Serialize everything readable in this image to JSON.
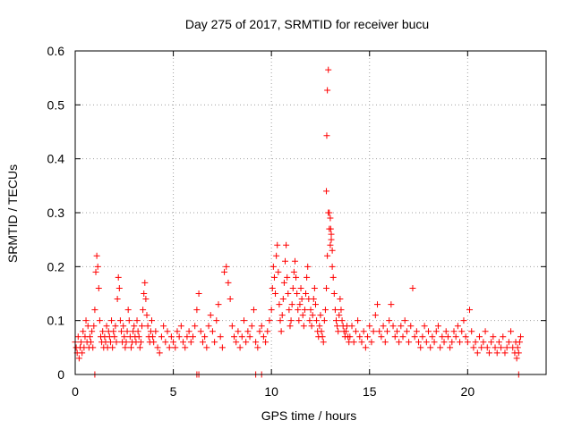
{
  "chart_data": {
    "type": "scatter",
    "title": "Day 275 of 2017, SRMTID for receiver bucu",
    "xlabel": "GPS time / hours",
    "ylabel": "SRMTID / TECUs",
    "xlim": [
      0,
      24
    ],
    "ylim": [
      0,
      0.6
    ],
    "xticks": [
      0,
      5,
      10,
      15,
      20
    ],
    "yticks": [
      0,
      0.1,
      0.2,
      0.3,
      0.4,
      0.5,
      0.6
    ],
    "xtick_labels": [
      "0",
      "5",
      "10",
      "15",
      "20"
    ],
    "ytick_labels": [
      "0",
      "0.1",
      "0.2",
      "0.3",
      "0.4",
      "0.5",
      "0.6"
    ],
    "grid": true,
    "marker": "+",
    "series_color": "#ff0000",
    "series": [
      {
        "name": "SRMTID",
        "x": [
          0.0,
          0.05,
          0.1,
          0.15,
          0.2,
          0.25,
          0.3,
          0.35,
          0.4,
          0.45,
          0.5,
          0.55,
          0.6,
          0.65,
          0.7,
          0.75,
          0.8,
          0.85,
          0.9,
          0.95,
          1.0,
          1.05,
          1.1,
          1.15,
          1.2,
          1.25,
          1.3,
          1.35,
          1.4,
          1.45,
          1.5,
          1.55,
          1.6,
          1.65,
          1.7,
          1.75,
          1.8,
          1.85,
          1.9,
          1.95,
          2.0,
          2.05,
          2.1,
          2.15,
          2.2,
          2.25,
          2.3,
          2.35,
          2.4,
          2.45,
          2.5,
          2.55,
          2.6,
          2.65,
          2.7,
          2.75,
          2.8,
          2.85,
          2.9,
          2.95,
          3.0,
          3.05,
          3.1,
          3.15,
          3.2,
          3.25,
          3.3,
          3.35,
          3.4,
          3.45,
          3.5,
          3.55,
          3.6,
          3.65,
          3.7,
          3.75,
          3.8,
          3.85,
          3.9,
          3.95,
          4.0,
          4.1,
          4.2,
          4.3,
          4.4,
          4.5,
          4.6,
          4.7,
          4.8,
          4.9,
          5.0,
          5.1,
          5.2,
          5.3,
          5.4,
          5.5,
          5.6,
          5.7,
          5.8,
          5.9,
          6.0,
          6.1,
          6.2,
          6.3,
          6.4,
          6.5,
          6.6,
          6.7,
          6.8,
          6.9,
          7.0,
          7.1,
          7.2,
          7.3,
          7.4,
          7.5,
          7.6,
          7.7,
          7.8,
          7.9,
          8.0,
          8.1,
          8.2,
          8.3,
          8.4,
          8.5,
          8.6,
          8.7,
          8.8,
          8.9,
          9.0,
          9.1,
          9.2,
          9.3,
          9.4,
          9.5,
          9.6,
          9.7,
          9.8,
          9.9,
          10.0,
          10.05,
          10.1,
          10.15,
          10.2,
          10.25,
          10.3,
          10.35,
          10.4,
          10.45,
          10.5,
          10.55,
          10.6,
          10.65,
          10.7,
          10.75,
          10.8,
          10.85,
          10.9,
          10.95,
          11.0,
          11.05,
          11.1,
          11.15,
          11.2,
          11.25,
          11.3,
          11.35,
          11.4,
          11.45,
          11.5,
          11.55,
          11.6,
          11.65,
          11.7,
          11.75,
          11.8,
          11.85,
          11.9,
          11.95,
          12.0,
          12.05,
          12.1,
          12.15,
          12.2,
          12.25,
          12.3,
          12.35,
          12.4,
          12.45,
          12.5,
          12.55,
          12.6,
          12.65,
          12.7,
          12.75,
          12.8,
          12.85,
          12.9,
          12.95,
          13.0,
          13.05,
          13.1,
          13.15,
          13.2,
          13.25,
          13.3,
          13.35,
          13.4,
          13.45,
          13.5,
          13.55,
          13.6,
          13.65,
          13.7,
          13.75,
          13.8,
          13.85,
          13.9,
          13.95,
          14.0,
          14.1,
          14.2,
          14.3,
          14.4,
          14.5,
          14.6,
          14.7,
          14.8,
          14.9,
          15.0,
          15.1,
          15.2,
          15.3,
          15.4,
          15.5,
          15.6,
          15.7,
          15.8,
          15.9,
          16.0,
          16.1,
          16.2,
          16.3,
          16.4,
          16.5,
          16.6,
          16.7,
          16.8,
          16.9,
          17.0,
          17.1,
          17.2,
          17.3,
          17.4,
          17.5,
          17.6,
          17.7,
          17.8,
          17.9,
          18.0,
          18.1,
          18.2,
          18.3,
          18.4,
          18.5,
          18.6,
          18.7,
          18.8,
          18.9,
          19.0,
          19.1,
          19.2,
          19.3,
          19.4,
          19.5,
          19.6,
          19.7,
          19.8,
          19.9,
          20.0,
          20.1,
          20.2,
          20.3,
          20.4,
          20.5,
          20.6,
          20.7,
          20.8,
          20.9,
          21.0,
          21.1,
          21.2,
          21.3,
          21.4,
          21.5,
          21.6,
          21.7,
          21.8,
          21.9,
          22.0,
          22.1,
          22.2,
          22.3,
          22.4,
          22.45,
          22.5,
          22.55,
          22.6,
          22.65,
          22.7,
          12.8,
          12.82,
          12.85,
          12.9,
          12.95,
          13.0,
          13.02,
          13.05,
          13.1,
          1.0,
          6.2,
          6.3,
          9.2,
          9.5,
          22.6
        ],
        "y": [
          0.06,
          0.05,
          0.04,
          0.07,
          0.03,
          0.05,
          0.06,
          0.04,
          0.08,
          0.05,
          0.07,
          0.1,
          0.06,
          0.09,
          0.05,
          0.07,
          0.06,
          0.08,
          0.05,
          0.09,
          0.12,
          0.19,
          0.22,
          0.2,
          0.16,
          0.1,
          0.07,
          0.06,
          0.08,
          0.05,
          0.07,
          0.06,
          0.09,
          0.05,
          0.08,
          0.07,
          0.06,
          0.1,
          0.05,
          0.08,
          0.07,
          0.09,
          0.06,
          0.14,
          0.18,
          0.16,
          0.1,
          0.08,
          0.06,
          0.09,
          0.07,
          0.05,
          0.06,
          0.08,
          0.12,
          0.1,
          0.07,
          0.05,
          0.06,
          0.08,
          0.09,
          0.07,
          0.06,
          0.1,
          0.08,
          0.07,
          0.05,
          0.06,
          0.09,
          0.12,
          0.15,
          0.17,
          0.14,
          0.11,
          0.09,
          0.07,
          0.06,
          0.08,
          0.1,
          0.07,
          0.06,
          0.08,
          0.05,
          0.04,
          0.07,
          0.09,
          0.06,
          0.08,
          0.05,
          0.07,
          0.06,
          0.05,
          0.08,
          0.07,
          0.09,
          0.06,
          0.05,
          0.07,
          0.08,
          0.06,
          0.07,
          0.09,
          0.12,
          0.15,
          0.08,
          0.06,
          0.07,
          0.05,
          0.09,
          0.11,
          0.08,
          0.06,
          0.1,
          0.13,
          0.07,
          0.05,
          0.19,
          0.2,
          0.17,
          0.14,
          0.09,
          0.07,
          0.06,
          0.08,
          0.05,
          0.07,
          0.1,
          0.06,
          0.08,
          0.07,
          0.09,
          0.12,
          0.06,
          0.05,
          0.08,
          0.09,
          0.07,
          0.06,
          0.08,
          0.1,
          0.12,
          0.16,
          0.2,
          0.18,
          0.15,
          0.22,
          0.24,
          0.19,
          0.13,
          0.1,
          0.08,
          0.11,
          0.14,
          0.17,
          0.21,
          0.24,
          0.18,
          0.15,
          0.12,
          0.09,
          0.1,
          0.13,
          0.16,
          0.19,
          0.21,
          0.18,
          0.15,
          0.12,
          0.1,
          0.13,
          0.16,
          0.14,
          0.11,
          0.09,
          0.12,
          0.15,
          0.18,
          0.2,
          0.14,
          0.1,
          0.12,
          0.09,
          0.11,
          0.14,
          0.16,
          0.13,
          0.1,
          0.08,
          0.07,
          0.09,
          0.11,
          0.08,
          0.07,
          0.06,
          0.1,
          0.12,
          0.16,
          0.22,
          0.3,
          0.27,
          0.24,
          0.26,
          0.2,
          0.18,
          0.15,
          0.12,
          0.1,
          0.09,
          0.08,
          0.11,
          0.14,
          0.12,
          0.1,
          0.09,
          0.08,
          0.07,
          0.08,
          0.09,
          0.07,
          0.06,
          0.07,
          0.09,
          0.06,
          0.08,
          0.1,
          0.07,
          0.06,
          0.08,
          0.05,
          0.07,
          0.09,
          0.06,
          0.08,
          0.11,
          0.13,
          0.08,
          0.07,
          0.09,
          0.06,
          0.08,
          0.1,
          0.13,
          0.09,
          0.07,
          0.08,
          0.06,
          0.09,
          0.07,
          0.1,
          0.08,
          0.06,
          0.09,
          0.16,
          0.07,
          0.08,
          0.06,
          0.05,
          0.07,
          0.09,
          0.06,
          0.08,
          0.05,
          0.07,
          0.06,
          0.08,
          0.09,
          0.05,
          0.07,
          0.06,
          0.08,
          0.07,
          0.05,
          0.06,
          0.08,
          0.07,
          0.09,
          0.06,
          0.08,
          0.1,
          0.07,
          0.06,
          0.12,
          0.08,
          0.05,
          0.06,
          0.04,
          0.07,
          0.05,
          0.06,
          0.08,
          0.05,
          0.04,
          0.06,
          0.07,
          0.05,
          0.04,
          0.06,
          0.05,
          0.07,
          0.04,
          0.05,
          0.06,
          0.08,
          0.05,
          0.04,
          0.06,
          0.03,
          0.05,
          0.04,
          0.06,
          0.07,
          0.34,
          0.443,
          0.527,
          0.565,
          0.3,
          0.29,
          0.27,
          0.25,
          0.23,
          0.0,
          0.0,
          0.0,
          0.0,
          0.0,
          0.0
        ]
      }
    ]
  }
}
